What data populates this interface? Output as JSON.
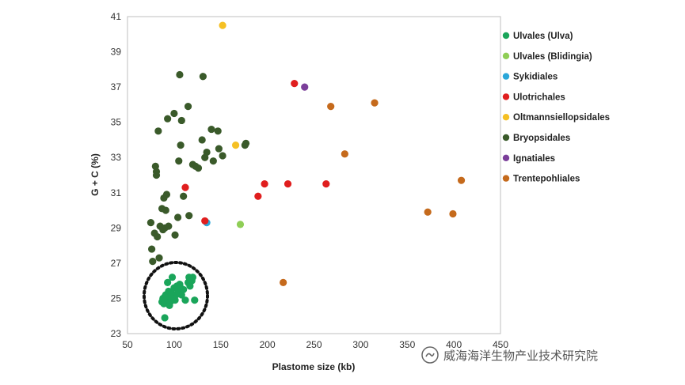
{
  "chart_data": {
    "type": "scatter",
    "xlabel": "Plastome size (kb)",
    "ylabel": "G + C (%)",
    "xlim": [
      50,
      450
    ],
    "ylim": [
      23,
      41
    ],
    "xticks": [
      "50",
      "100",
      "150",
      "200",
      "250",
      "300",
      "350",
      "400",
      "450"
    ],
    "yticks": [
      "23",
      "25",
      "27",
      "29",
      "31",
      "33",
      "35",
      "37",
      "39",
      "41"
    ],
    "grid": false,
    "legend_position": "right",
    "series": [
      {
        "name": "Ulvales (Ulva)",
        "color": "#1aa55a",
        "points": [
          [
            87,
            24.8
          ],
          [
            88,
            25.0
          ],
          [
            89,
            24.7
          ],
          [
            90,
            23.9
          ],
          [
            91,
            25.2
          ],
          [
            92,
            24.9
          ],
          [
            93,
            25.9
          ],
          [
            94,
            25.4
          ],
          [
            95,
            24.6
          ],
          [
            96,
            24.8
          ],
          [
            97,
            25.3
          ],
          [
            98,
            26.2
          ],
          [
            99,
            25.0
          ],
          [
            100,
            25.6
          ],
          [
            101,
            24.9
          ],
          [
            102,
            25.2
          ],
          [
            103,
            25.7
          ],
          [
            104,
            25.5
          ],
          [
            105,
            25.3
          ],
          [
            106,
            25.8
          ],
          [
            107,
            25.6
          ],
          [
            108,
            25.2
          ],
          [
            110,
            25.5
          ],
          [
            112,
            24.9
          ],
          [
            115,
            25.9
          ],
          [
            116,
            26.2
          ],
          [
            117,
            25.7
          ],
          [
            119,
            26.0
          ],
          [
            120,
            26.2
          ],
          [
            122,
            24.9
          ],
          [
            96,
            25.1
          ],
          [
            90,
            25.1
          ]
        ]
      },
      {
        "name": "Ulvales (Blidingia)",
        "color": "#8fce56",
        "points": [
          [
            171,
            29.2
          ]
        ]
      },
      {
        "name": "Sykidiales",
        "color": "#2aa7d9",
        "points": [
          [
            135,
            29.3
          ]
        ]
      },
      {
        "name": "Ulotrichales",
        "color": "#e01e1e",
        "points": [
          [
            112,
            31.3
          ],
          [
            133,
            29.4
          ],
          [
            190,
            30.8
          ],
          [
            197,
            31.5
          ],
          [
            222,
            31.5
          ],
          [
            229,
            37.2
          ],
          [
            263,
            31.5
          ]
        ]
      },
      {
        "name": "Oltmannsiellopsidales",
        "color": "#f5c024",
        "points": [
          [
            152,
            40.5
          ],
          [
            166,
            33.7
          ]
        ]
      },
      {
        "name": "Bryopsidales",
        "color": "#3a5a2a",
        "points": [
          [
            75,
            29.3
          ],
          [
            76,
            27.8
          ],
          [
            77,
            27.1
          ],
          [
            79,
            28.7
          ],
          [
            80,
            32.5
          ],
          [
            81,
            32.2
          ],
          [
            81,
            32.0
          ],
          [
            82,
            28.5
          ],
          [
            83,
            34.5
          ],
          [
            84,
            27.3
          ],
          [
            85,
            29.1
          ],
          [
            87,
            30.1
          ],
          [
            88,
            28.9
          ],
          [
            89,
            30.7
          ],
          [
            90,
            29.0
          ],
          [
            91,
            30.0
          ],
          [
            92,
            30.9
          ],
          [
            93,
            35.2
          ],
          [
            94,
            29.1
          ],
          [
            100,
            35.5
          ],
          [
            101,
            28.6
          ],
          [
            104,
            29.6
          ],
          [
            105,
            32.8
          ],
          [
            106,
            37.7
          ],
          [
            107,
            33.7
          ],
          [
            108,
            35.1
          ],
          [
            110,
            30.8
          ],
          [
            115,
            35.9
          ],
          [
            116,
            29.7
          ],
          [
            120,
            32.6
          ],
          [
            123,
            32.5
          ],
          [
            126,
            32.4
          ],
          [
            130,
            34.0
          ],
          [
            131,
            37.6
          ],
          [
            133,
            33.0
          ],
          [
            135,
            33.3
          ],
          [
            140,
            34.6
          ],
          [
            142,
            32.8
          ],
          [
            147,
            34.5
          ],
          [
            148,
            33.5
          ],
          [
            152,
            33.1
          ],
          [
            176,
            33.7
          ],
          [
            177,
            33.8
          ]
        ]
      },
      {
        "name": "Ignatiales",
        "color": "#7b3f9a",
        "points": [
          [
            240,
            37.0
          ]
        ]
      },
      {
        "name": "Trentepohliales",
        "color": "#c56a1c",
        "points": [
          [
            217,
            25.9
          ],
          [
            268,
            35.9
          ],
          [
            283,
            33.2
          ],
          [
            315,
            36.1
          ],
          [
            372,
            29.9
          ],
          [
            399,
            29.8
          ],
          [
            408,
            31.7
          ]
        ]
      }
    ]
  },
  "watermark": {
    "text": "威海海洋生物产业技术研究院"
  }
}
